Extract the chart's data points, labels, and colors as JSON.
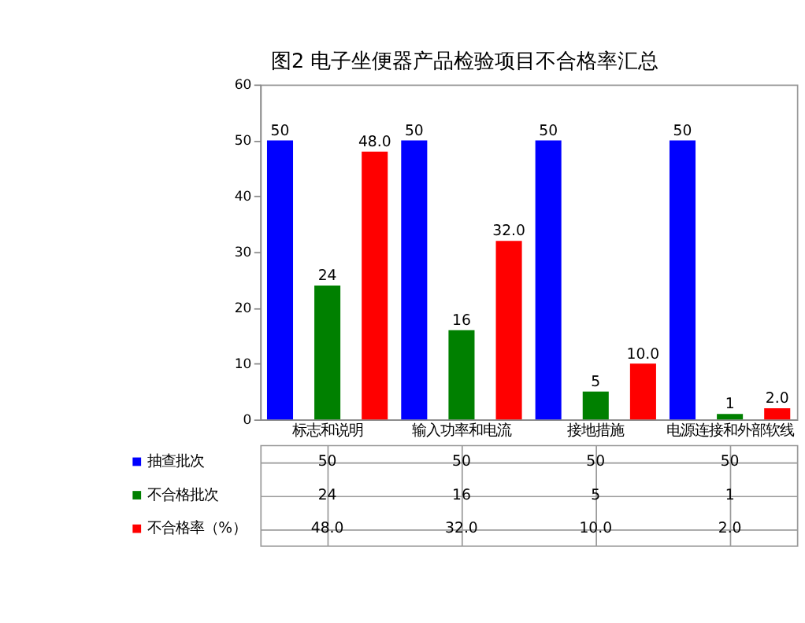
{
  "chart_data": {
    "type": "bar",
    "title": "图2  电子坐便器产品检验项目不合格率汇总",
    "categories": [
      "标志和说明",
      "输入功率和电流",
      "接地措施",
      "电源连接和外部软线"
    ],
    "series": [
      {
        "name": "抽查批次",
        "color": "#0000ff",
        "values": [
          50,
          50,
          50,
          50
        ],
        "value_labels": [
          "50",
          "50",
          "50",
          "50"
        ]
      },
      {
        "name": "不合格批次",
        "color": "#008000",
        "values": [
          24,
          16,
          5,
          1
        ],
        "value_labels": [
          "24",
          "16",
          "5",
          "1"
        ]
      },
      {
        "name": "不合格率（%）",
        "color": "#ff0000",
        "values": [
          48.0,
          32.0,
          10.0,
          2.0
        ],
        "value_labels": [
          "48.0",
          "32.0",
          "10.0",
          "2.0"
        ]
      }
    ],
    "ylim": [
      0,
      60
    ],
    "yticks": [
      0,
      10,
      20,
      30,
      40,
      50,
      60
    ],
    "grid": false,
    "legend": "bottom"
  }
}
